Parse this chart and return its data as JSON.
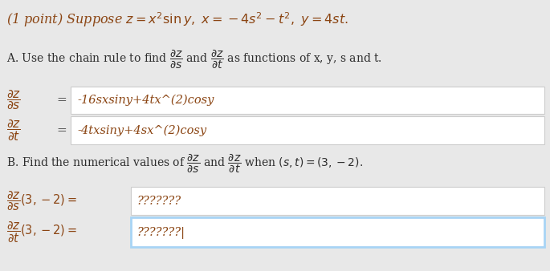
{
  "bg_color": "#e8e8e8",
  "white_color": "#ffffff",
  "blue_border_color": "#a8d4f5",
  "gray_border_color": "#cccccc",
  "text_black": "#2d2d2d",
  "text_brown": "#8B4513",
  "title": "(1 point) Suppose $z = x^2 \\sin y,\\ x = -4s^2 - t^2,\\ y = 4st.$",
  "A_line": "A. Use the chain rule to find $\\dfrac{\\partial z}{\\partial s}$ and $\\dfrac{\\partial z}{\\partial t}$ as functions of x, y, s and t.",
  "dzds_frac": "$\\dfrac{\\partial z}{\\partial s}$",
  "dzdt_frac": "$\\dfrac{\\partial z}{\\partial t}$",
  "eq": "=",
  "dzds_val": "-16sxsiny+4tx^(2)cosy",
  "dzdt_val": "-4txsiny+4sx^(2)cosy",
  "B_line": "B. Find the numerical values of $\\dfrac{\\partial z}{\\partial s}$ and $\\dfrac{\\partial z}{\\partial t}$ when $(s, t) = (3, -2).$",
  "dzds_B": "$\\dfrac{\\partial z}{\\partial s}(3, -2) = $",
  "dzdt_B": "$\\dfrac{\\partial z}{\\partial t}(3, -2) = $",
  "placeholder1": "???????",
  "placeholder2": "???????|",
  "figw": 6.85,
  "figh": 3.38,
  "dpi": 100
}
